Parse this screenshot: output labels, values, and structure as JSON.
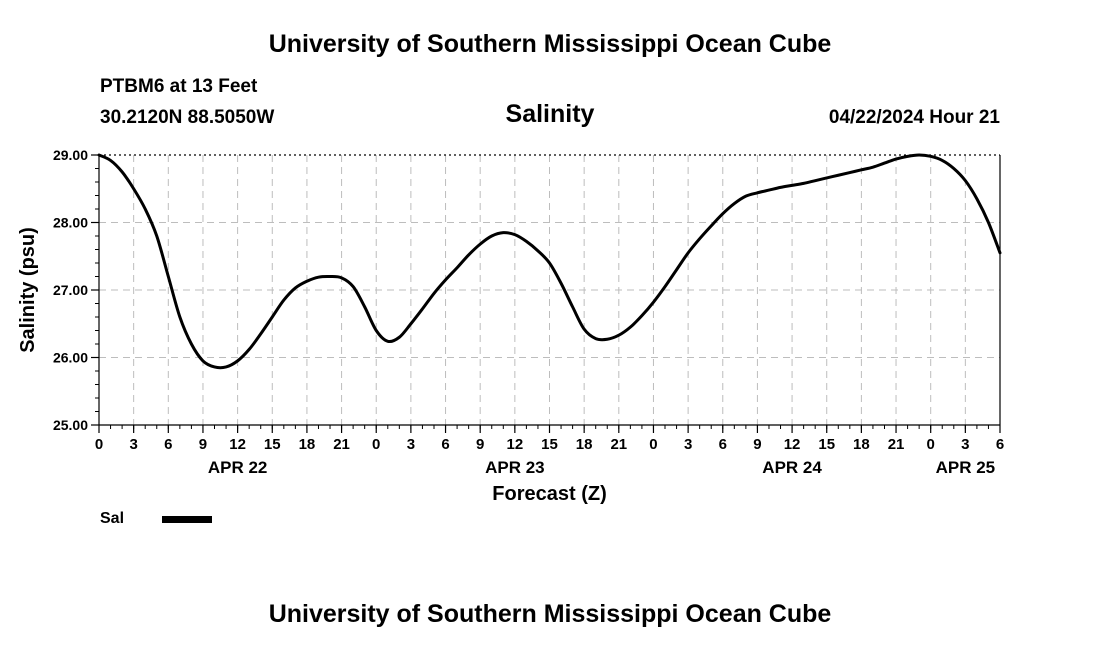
{
  "header": {
    "title": "University of Southern Mississippi Ocean Cube",
    "station": "PTBM6 at 13 Feet",
    "location": "30.2120N  88.5050W",
    "datetime": "04/22/2024 Hour 21"
  },
  "footer": {
    "title": "University of Southern Mississippi Ocean Cube"
  },
  "legend": {
    "label": "Sal",
    "color": "#000000"
  },
  "chart_data": {
    "type": "line",
    "title": "Salinity",
    "xlabel": "Forecast (Z)",
    "ylabel": "Salinity (psu)",
    "x_unit": "hours since 04/22/2024 00Z",
    "xlim": [
      0,
      78
    ],
    "ylim": [
      25.0,
      29.0
    ],
    "yticks": [
      "25.00",
      "26.00",
      "27.00",
      "28.00",
      "29.00"
    ],
    "xtick_labels": [
      "0",
      "3",
      "6",
      "9",
      "12",
      "15",
      "18",
      "21",
      "0",
      "3",
      "6",
      "9",
      "12",
      "15",
      "18",
      "21",
      "0",
      "3",
      "6",
      "9",
      "12",
      "15",
      "18",
      "21",
      "0",
      "3",
      "6"
    ],
    "date_labels": [
      {
        "label": "APR 22",
        "hour": 12
      },
      {
        "label": "APR 23",
        "hour": 36
      },
      {
        "label": "APR 24",
        "hour": 60
      },
      {
        "label": "APR 25",
        "hour": 75
      }
    ],
    "grid": true,
    "series": [
      {
        "name": "Sal",
        "color": "#000000",
        "x": [
          0,
          1,
          2,
          3,
          4,
          5,
          6,
          7,
          8,
          9,
          10,
          11,
          12,
          13,
          14,
          15,
          16,
          17,
          18,
          19,
          20,
          21,
          22,
          23,
          24,
          25,
          26,
          27,
          28,
          29,
          30,
          31,
          32,
          33,
          34,
          35,
          36,
          37,
          38,
          39,
          40,
          41,
          42,
          43,
          44,
          45,
          46,
          47,
          48,
          49,
          50,
          51,
          52,
          53,
          54,
          55,
          56,
          57,
          58,
          59,
          60,
          61,
          62,
          63,
          64,
          65,
          66,
          67,
          68,
          69,
          70,
          71,
          72,
          73,
          74,
          75,
          76,
          77,
          78
        ],
        "values": [
          29.0,
          28.92,
          28.75,
          28.5,
          28.2,
          27.8,
          27.2,
          26.6,
          26.2,
          25.95,
          25.86,
          25.86,
          25.95,
          26.12,
          26.35,
          26.6,
          26.85,
          27.03,
          27.13,
          27.19,
          27.2,
          27.18,
          27.05,
          26.75,
          26.4,
          26.24,
          26.3,
          26.5,
          26.72,
          26.95,
          27.15,
          27.33,
          27.52,
          27.68,
          27.8,
          27.85,
          27.82,
          27.72,
          27.58,
          27.4,
          27.1,
          26.75,
          26.42,
          26.28,
          26.27,
          26.33,
          26.45,
          26.62,
          26.82,
          27.05,
          27.3,
          27.55,
          27.76,
          27.95,
          28.13,
          28.28,
          28.39,
          28.44,
          28.48,
          28.52,
          28.55,
          28.58,
          28.62,
          28.66,
          28.7,
          28.74,
          28.78,
          28.82,
          28.88,
          28.94,
          28.98,
          29.0,
          28.98,
          28.92,
          28.8,
          28.62,
          28.35,
          28.0,
          27.55
        ]
      }
    ]
  }
}
